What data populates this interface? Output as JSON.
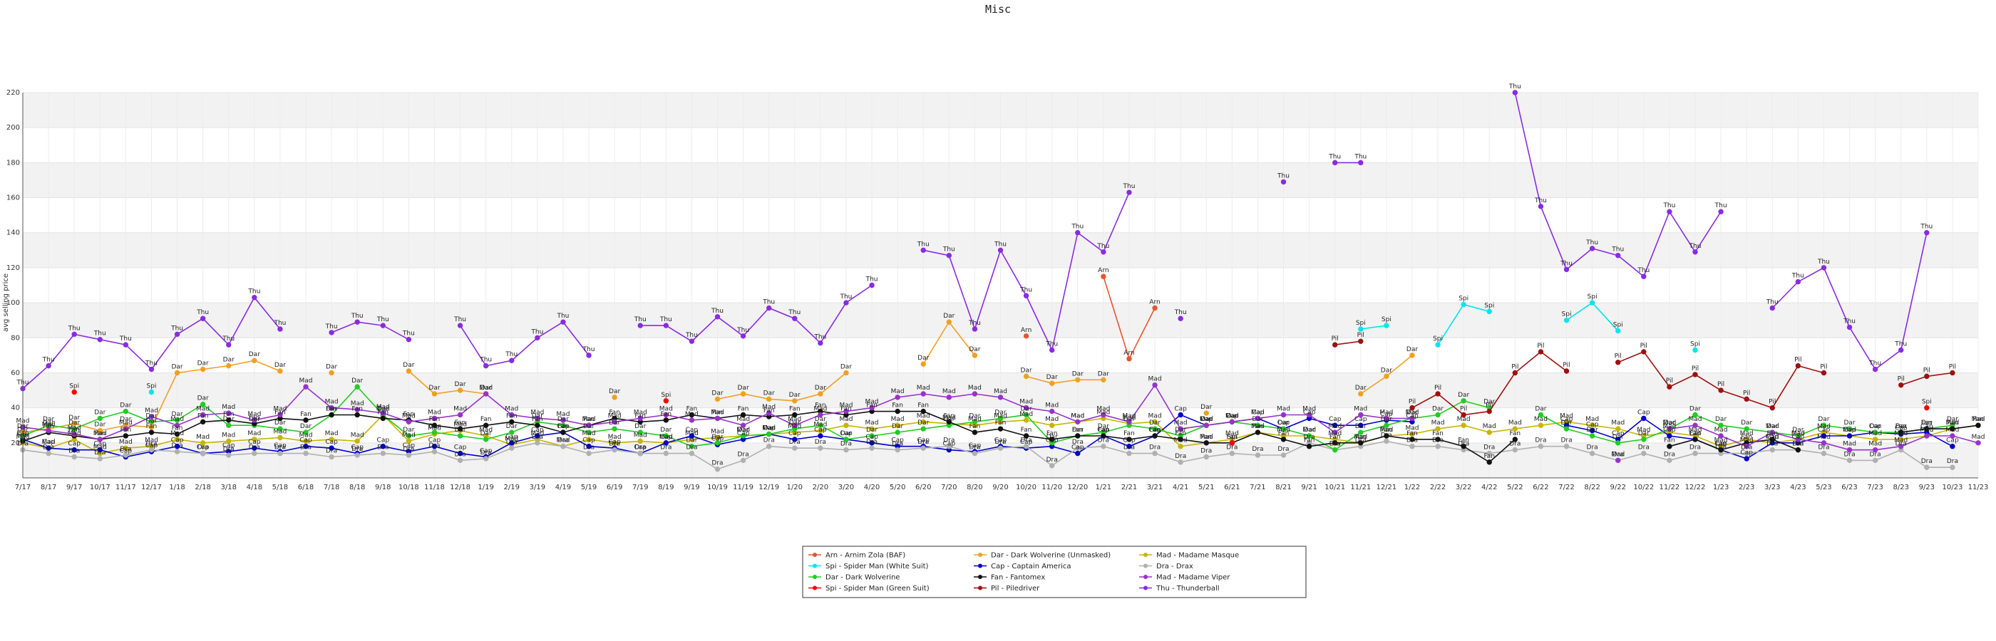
{
  "chart_data": {
    "type": "line",
    "title": "Misc",
    "xlabel": "",
    "ylabel": "avg selling price",
    "ylim": [
      0,
      220
    ],
    "yticks": [
      20,
      40,
      60,
      80,
      100,
      120,
      140,
      160,
      180,
      200,
      220
    ],
    "grid": "horizontal bands",
    "legend": "bottom-center",
    "x": [
      "7/17",
      "8/17",
      "9/17",
      "10/17",
      "11/17",
      "12/17",
      "1/18",
      "2/18",
      "3/18",
      "4/18",
      "5/18",
      "6/18",
      "7/18",
      "8/18",
      "9/18",
      "10/18",
      "11/18",
      "12/18",
      "1/19",
      "2/19",
      "3/19",
      "4/19",
      "5/19",
      "6/19",
      "7/19",
      "8/19",
      "9/19",
      "10/19",
      "11/19",
      "12/19",
      "1/20",
      "2/20",
      "3/20",
      "4/20",
      "5/20",
      "6/20",
      "7/20",
      "8/20",
      "9/20",
      "10/20",
      "11/20",
      "12/20",
      "1/21",
      "2/21",
      "3/21",
      "4/21",
      "5/21",
      "6/21",
      "7/21",
      "8/21",
      "9/21",
      "10/21",
      "11/21",
      "12/21",
      "1/22",
      "2/22",
      "3/22",
      "4/22",
      "5/22",
      "6/22",
      "7/22",
      "8/22",
      "9/22",
      "10/22",
      "11/22",
      "12/22",
      "1/23",
      "2/23",
      "3/23",
      "4/23",
      "5/23",
      "6/23",
      "7/23",
      "8/23",
      "9/23",
      "10/23",
      "11/23"
    ],
    "series": [
      {
        "name": "Arn - Arnim Zola (BAF)",
        "label": "Arn",
        "color": "#e4572e",
        "values": [
          null,
          null,
          null,
          null,
          null,
          null,
          null,
          null,
          null,
          null,
          null,
          null,
          null,
          null,
          null,
          null,
          null,
          null,
          null,
          null,
          null,
          null,
          null,
          null,
          null,
          null,
          null,
          null,
          null,
          null,
          null,
          null,
          null,
          null,
          null,
          null,
          null,
          null,
          null,
          81,
          null,
          null,
          115,
          68,
          97,
          null,
          null,
          null,
          null,
          null,
          null,
          null,
          null,
          null,
          null,
          null,
          null,
          null,
          null,
          null,
          null,
          null,
          null,
          null,
          null,
          null,
          null,
          null,
          null,
          null,
          null,
          null,
          null,
          null,
          null,
          null,
          null
        ]
      },
      {
        "name": "Dar - Dark Wolverine (Unmasked)",
        "label": "Dar",
        "color": "#f0a020",
        "values": [
          26,
          28,
          31,
          27,
          30,
          29,
          60,
          62,
          64,
          67,
          61,
          null,
          60,
          null,
          null,
          61,
          48,
          50,
          48,
          null,
          null,
          null,
          null,
          46,
          null,
          null,
          null,
          45,
          48,
          45,
          44,
          48,
          60,
          null,
          null,
          65,
          89,
          70,
          null,
          58,
          54,
          56,
          56,
          null,
          null,
          null,
          37,
          null,
          null,
          null,
          null,
          null,
          48,
          58,
          70,
          null,
          null,
          null,
          null,
          null,
          null,
          null,
          null,
          null,
          null,
          null,
          null,
          null,
          null,
          null,
          null,
          null,
          null,
          null,
          null,
          null,
          null
        ]
      },
      {
        "name": "Mad - Madame Masque",
        "label": "Mad",
        "color": "#c8b400",
        "values": [
          20,
          17,
          22,
          14,
          17,
          18,
          22,
          20,
          21,
          22,
          23,
          21,
          22,
          21,
          36,
          21,
          25,
          27,
          24,
          19,
          22,
          18,
          22,
          20,
          21,
          20,
          22,
          23,
          24,
          25,
          26,
          27,
          30,
          28,
          30,
          32,
          31,
          30,
          32,
          33,
          30,
          32,
          34,
          31,
          32,
          18,
          20,
          22,
          26,
          24,
          24,
          22,
          20,
          24,
          25,
          28,
          30,
          26,
          28,
          30,
          32,
          30,
          28,
          24,
          26,
          24,
          18,
          22,
          20,
          22,
          26,
          24,
          22,
          22,
          24,
          28,
          30
        ]
      },
      {
        "name": "Spi - Spider Man (White Suit)",
        "label": "Spi",
        "color": "#00e5ee",
        "values": [
          null,
          null,
          null,
          null,
          null,
          49,
          null,
          null,
          null,
          null,
          null,
          null,
          null,
          null,
          null,
          null,
          null,
          null,
          null,
          null,
          null,
          null,
          null,
          null,
          null,
          null,
          null,
          null,
          null,
          null,
          null,
          null,
          null,
          null,
          null,
          null,
          null,
          null,
          null,
          null,
          null,
          null,
          null,
          null,
          null,
          null,
          null,
          null,
          null,
          null,
          null,
          null,
          85,
          87,
          null,
          76,
          99,
          95,
          null,
          null,
          90,
          100,
          84,
          null,
          null,
          73,
          null,
          null,
          null,
          null,
          null,
          null,
          null,
          null,
          null,
          null,
          null
        ]
      },
      {
        "name": "Cap - Captain America",
        "label": "Cap",
        "color": "#0000cc",
        "values": [
          22,
          17,
          16,
          16,
          12,
          15,
          18,
          14,
          15,
          17,
          15,
          18,
          17,
          14,
          18,
          15,
          18,
          14,
          12,
          20,
          24,
          26,
          18,
          17,
          14,
          20,
          24,
          19,
          22,
          25,
          22,
          24,
          22,
          20,
          18,
          18,
          16,
          15,
          18,
          17,
          18,
          14,
          24,
          18,
          24,
          36,
          30,
          32,
          34,
          28,
          34,
          30,
          30,
          33,
          32,
          null,
          null,
          null,
          null,
          null,
          30,
          27,
          22,
          34,
          24,
          22,
          16,
          11,
          20,
          20,
          24,
          24,
          26,
          25,
          26,
          18,
          null
        ]
      },
      {
        "name": "Dra - Drax",
        "label": "Dra",
        "color": "#b0b0b0",
        "values": [
          16,
          14,
          12,
          11,
          13,
          16,
          15,
          14,
          13,
          14,
          14,
          14,
          12,
          13,
          14,
          13,
          15,
          10,
          11,
          17,
          20,
          18,
          14,
          16,
          14,
          14,
          14,
          5,
          10,
          18,
          17,
          17,
          16,
          17,
          16,
          17,
          18,
          14,
          17,
          18,
          7,
          17,
          18,
          14,
          14,
          9,
          12,
          14,
          13,
          13,
          20,
          16,
          18,
          21,
          18,
          18,
          16,
          14,
          16,
          18,
          18,
          14,
          10,
          14,
          10,
          14,
          14,
          14,
          16,
          16,
          14,
          10,
          10,
          16,
          6,
          6,
          null
        ]
      },
      {
        "name": "Dar - Dark Wolverine",
        "label": "Dar",
        "color": "#22cc22",
        "values": [
          24,
          30,
          28,
          34,
          38,
          32,
          33,
          42,
          30,
          30,
          28,
          26,
          36,
          52,
          36,
          24,
          26,
          24,
          22,
          26,
          32,
          30,
          26,
          28,
          26,
          24,
          18,
          20,
          24,
          25,
          28,
          30,
          22,
          24,
          26,
          28,
          30,
          32,
          34,
          36,
          20,
          24,
          26,
          30,
          28,
          24,
          30,
          32,
          30,
          28,
          24,
          16,
          26,
          30,
          34,
          36,
          44,
          40,
          null,
          36,
          28,
          24,
          20,
          22,
          28,
          36,
          30,
          28,
          26,
          24,
          30,
          28,
          26,
          26,
          28,
          30,
          null
        ]
      },
      {
        "name": "Fan - Fantomex",
        "label": "Fan",
        "color": "#111111",
        "values": [
          21,
          26,
          24,
          22,
          24,
          26,
          25,
          32,
          33,
          31,
          34,
          33,
          36,
          36,
          34,
          33,
          30,
          28,
          30,
          32,
          30,
          26,
          30,
          34,
          32,
          33,
          36,
          34,
          36,
          35,
          36,
          38,
          36,
          38,
          38,
          38,
          32,
          26,
          28,
          24,
          22,
          24,
          24,
          22,
          24,
          22,
          20,
          20,
          26,
          22,
          18,
          20,
          20,
          24,
          22,
          22,
          18,
          9,
          22,
          null,
          null,
          null,
          null,
          null,
          18,
          22,
          16,
          20,
          22,
          16,
          null,
          null,
          null,
          26,
          28,
          28,
          30
        ]
      },
      {
        "name": "Mad - Madame Viper",
        "label": "Mad",
        "color": "#9932cc",
        "values": [
          29,
          27,
          25,
          22,
          28,
          35,
          30,
          36,
          37,
          33,
          36,
          52,
          40,
          39,
          37,
          32,
          34,
          36,
          48,
          36,
          34,
          33,
          30,
          32,
          34,
          36,
          33,
          34,
          30,
          37,
          30,
          36,
          38,
          40,
          46,
          48,
          46,
          48,
          46,
          40,
          38,
          32,
          36,
          32,
          53,
          28,
          30,
          32,
          34,
          36,
          36,
          26,
          36,
          34,
          34,
          null,
          null,
          null,
          null,
          null,
          null,
          null,
          10,
          null,
          28,
          30,
          24,
          18,
          26,
          22,
          20,
          16,
          16,
          18,
          24,
          24,
          20
        ]
      },
      {
        "name": "Spi - Spider Man (Green Suit)",
        "label": "Spi",
        "color": "#ff0000",
        "values": [
          null,
          null,
          49,
          null,
          null,
          null,
          null,
          null,
          null,
          null,
          null,
          null,
          null,
          null,
          null,
          null,
          null,
          null,
          null,
          null,
          null,
          null,
          null,
          null,
          null,
          44,
          null,
          null,
          null,
          null,
          null,
          null,
          null,
          null,
          null,
          null,
          null,
          null,
          null,
          null,
          null,
          null,
          null,
          null,
          null,
          null,
          null,
          20,
          null,
          null,
          null,
          null,
          null,
          null,
          null,
          null,
          null,
          null,
          null,
          null,
          null,
          null,
          null,
          null,
          null,
          null,
          null,
          null,
          null,
          null,
          null,
          null,
          null,
          null,
          40,
          null,
          null
        ]
      },
      {
        "name": "Pil - Piledriver",
        "label": "Pil",
        "color": "#a01010",
        "values": [
          null,
          null,
          null,
          null,
          null,
          null,
          null,
          null,
          null,
          null,
          null,
          null,
          null,
          null,
          null,
          null,
          null,
          null,
          null,
          null,
          null,
          null,
          null,
          null,
          null,
          null,
          null,
          null,
          null,
          null,
          null,
          null,
          null,
          null,
          null,
          null,
          null,
          null,
          null,
          null,
          null,
          null,
          null,
          null,
          null,
          null,
          null,
          null,
          null,
          null,
          null,
          76,
          78,
          null,
          40,
          48,
          36,
          38,
          60,
          72,
          61,
          null,
          66,
          72,
          52,
          59,
          50,
          45,
          40,
          64,
          60,
          null,
          null,
          53,
          58,
          60,
          null
        ]
      },
      {
        "name": "Thu - Thunderball",
        "label": "Thu",
        "color": "#8a2be2",
        "values": [
          51,
          64,
          82,
          79,
          76,
          62,
          82,
          91,
          76,
          103,
          85,
          null,
          83,
          89,
          87,
          79,
          null,
          87,
          64,
          67,
          80,
          89,
          70,
          null,
          87,
          87,
          78,
          92,
          81,
          97,
          91,
          77,
          100,
          110,
          null,
          130,
          127,
          85,
          130,
          104,
          73,
          140,
          129,
          163,
          null,
          91,
          null,
          null,
          null,
          169,
          null,
          180,
          180,
          null,
          null,
          null,
          null,
          null,
          220,
          155,
          119,
          131,
          127,
          115,
          152,
          129,
          152,
          null,
          97,
          112,
          120,
          86,
          62,
          73,
          140,
          null,
          null
        ]
      }
    ]
  },
  "axes": {
    "ylabel": "avg selling price"
  }
}
